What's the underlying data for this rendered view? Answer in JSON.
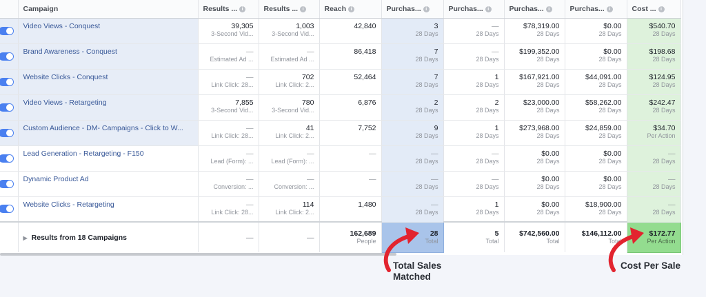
{
  "columns": [
    {
      "label": "Campaign"
    },
    {
      "label": "Results ..."
    },
    {
      "label": "Results ..."
    },
    {
      "label": "Reach"
    },
    {
      "label": "Purchas..."
    },
    {
      "label": "Purchas..."
    },
    {
      "label": "Purchas..."
    },
    {
      "label": "Purchas..."
    },
    {
      "label": "Cost ..."
    }
  ],
  "rows": [
    {
      "name": "Video Views - Conquest",
      "r1": "39,305",
      "r1s": "3-Second Vid...",
      "r2": "1,003",
      "r2s": "3-Second Vid...",
      "reach": "42,840",
      "p1": "3",
      "p1s": "28 Days",
      "p2": "—",
      "p2s": "28 Days",
      "p3": "$78,319.00",
      "p3s": "28 Days",
      "p4": "$0.00",
      "p4s": "28 Days",
      "cost": "$540.70",
      "costs": "28 Days"
    },
    {
      "name": "Brand Awareness - Conquest",
      "r1": "—",
      "r1s": "Estimated Ad ...",
      "r2": "—",
      "r2s": "Estimated Ad ...",
      "reach": "86,418",
      "p1": "7",
      "p1s": "28 Days",
      "p2": "—",
      "p2s": "28 Days",
      "p3": "$199,352.00",
      "p3s": "28 Days",
      "p4": "$0.00",
      "p4s": "28 Days",
      "cost": "$198.68",
      "costs": "28 Days"
    },
    {
      "name": "Website Clicks - Conquest",
      "r1": "—",
      "r1s": "Link Click: 28...",
      "r2": "702",
      "r2s": "Link Click: 2...",
      "reach": "52,464",
      "p1": "7",
      "p1s": "28 Days",
      "p2": "1",
      "p2s": "28 Days",
      "p3": "$167,921.00",
      "p3s": "28 Days",
      "p4": "$44,091.00",
      "p4s": "28 Days",
      "cost": "$124.95",
      "costs": "28 Days"
    },
    {
      "name": "Video Views - Retargeting",
      "r1": "7,855",
      "r1s": "3-Second Vid...",
      "r2": "780",
      "r2s": "3-Second Vid...",
      "reach": "6,876",
      "p1": "2",
      "p1s": "28 Days",
      "p2": "2",
      "p2s": "28 Days",
      "p3": "$23,000.00",
      "p3s": "28 Days",
      "p4": "$58,262.00",
      "p4s": "28 Days",
      "cost": "$242.47",
      "costs": "28 Days"
    },
    {
      "name": "Custom Audience - DM- Campaigns - Click to W...",
      "r1": "—",
      "r1s": "Link Click: 28...",
      "r2": "41",
      "r2s": "Link Click: 2...",
      "reach": "7,752",
      "p1": "9",
      "p1s": "28 Days",
      "p2": "1",
      "p2s": "28 Days",
      "p3": "$273,968.00",
      "p3s": "28 Days",
      "p4": "$24,859.00",
      "p4s": "28 Days",
      "cost": "$34.70",
      "costs": "Per Action"
    },
    {
      "name": "Lead Generation - Retargeting - F150",
      "r1": "—",
      "r1s": "Lead (Form): ...",
      "r2": "—",
      "r2s": "Lead (Form): ...",
      "reach": "—",
      "p1": "—",
      "p1s": "28 Days",
      "p2": "—",
      "p2s": "28 Days",
      "p3": "$0.00",
      "p3s": "28 Days",
      "p4": "$0.00",
      "p4s": "28 Days",
      "cost": "—",
      "costs": "28 Days"
    },
    {
      "name": "Dynamic Product Ad",
      "r1": "—",
      "r1s": "Conversion: ...",
      "r2": "—",
      "r2s": "Conversion: ...",
      "reach": "—",
      "p1": "—",
      "p1s": "28 Days",
      "p2": "—",
      "p2s": "28 Days",
      "p3": "$0.00",
      "p3s": "28 Days",
      "p4": "$0.00",
      "p4s": "28 Days",
      "cost": "—",
      "costs": "28 Days"
    },
    {
      "name": "Website Clicks - Retargeting",
      "r1": "—",
      "r1s": "Link Click: 28...",
      "r2": "114",
      "r2s": "Link Click: 2...",
      "reach": "1,480",
      "p1": "—",
      "p1s": "28 Days",
      "p2": "1",
      "p2s": "28 Days",
      "p3": "$0.00",
      "p3s": "28 Days",
      "p4": "$18,900.00",
      "p4s": "28 Days",
      "cost": "—",
      "costs": "28 Days"
    }
  ],
  "summary": {
    "label": "Results from 18 Campaigns",
    "r1": "—",
    "r2": "—",
    "reach": "162,689",
    "reachs": "People",
    "p1": "28",
    "p1s": "Total",
    "p2": "5",
    "p2s": "Total",
    "p3": "$742,560.00",
    "p3s": "Total",
    "p4": "$146,112.00",
    "p4s": "Total",
    "cost": "$172.77",
    "costs": "Per Action"
  },
  "annotations": {
    "total_sales_line1": "Total Sales",
    "total_sales_line2": "Matched",
    "cost_per_sale": "Cost Per Sale"
  },
  "colors": {
    "toggle_on": "#4a80f0",
    "purchases_highlight": "#a9c4ea",
    "cost_highlight": "#93dc8f",
    "arrow": "#e2242f"
  }
}
